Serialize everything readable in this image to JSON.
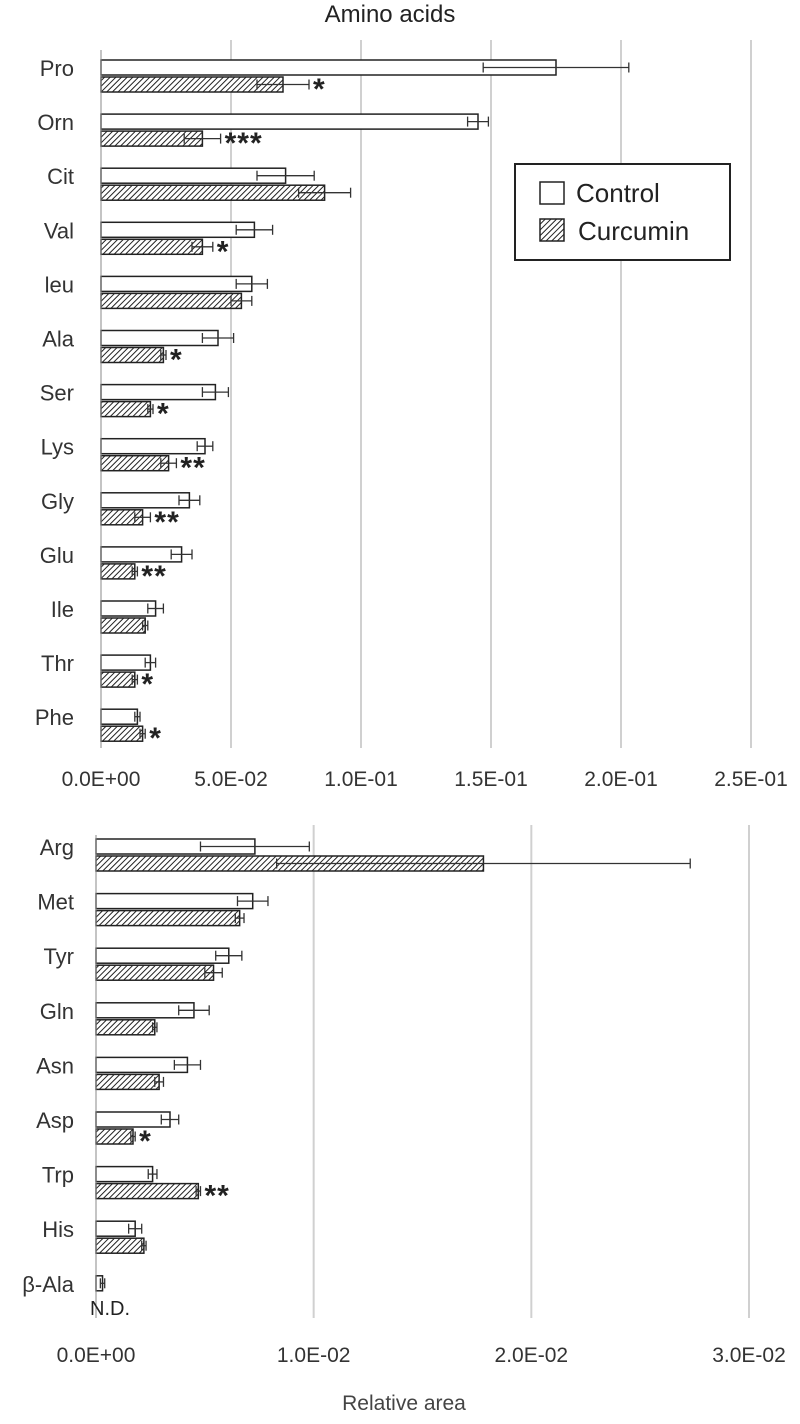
{
  "title": "Amino acids",
  "xlabel": "Relative area",
  "legend": {
    "control": "Control",
    "curcumin": "Curcumin",
    "position": "top-right (in top panel)"
  },
  "pattern": {
    "control": "white fill",
    "curcumin": "diagonal hatch"
  },
  "colors": {
    "bar_stroke": "#222222",
    "hatch": "#222222",
    "grid": "#d0d0d0",
    "text": "#333333"
  },
  "chart_data": [
    {
      "type": "bar",
      "orientation": "horizontal",
      "title": "Amino acids",
      "xlim": [
        0,
        0.25
      ],
      "xticks": [
        "0.0E+00",
        "5.0E-02",
        "1.0E-01",
        "1.5E-01",
        "2.0E-01",
        "2.5E-01"
      ],
      "grid": true,
      "categories": [
        "Pro",
        "Orn",
        "Cit",
        "Val",
        "leu",
        "Ala",
        "Ser",
        "Lys",
        "Gly",
        "Glu",
        "Ile",
        "Thr",
        "Phe"
      ],
      "series": [
        {
          "name": "Control",
          "values": [
            0.175,
            0.145,
            0.071,
            0.059,
            0.058,
            0.045,
            0.044,
            0.04,
            0.034,
            0.031,
            0.021,
            0.019,
            0.014
          ],
          "errors": [
            0.028,
            0.004,
            0.011,
            0.007,
            0.006,
            0.006,
            0.005,
            0.003,
            0.004,
            0.004,
            0.003,
            0.002,
            0.001
          ]
        },
        {
          "name": "Curcumin",
          "values": [
            0.07,
            0.039,
            0.086,
            0.039,
            0.054,
            0.024,
            0.019,
            0.026,
            0.016,
            0.013,
            0.017,
            0.013,
            0.016
          ],
          "errors": [
            0.01,
            0.007,
            0.01,
            0.004,
            0.004,
            0.001,
            0.001,
            0.003,
            0.003,
            0.001,
            0.001,
            0.001,
            0.001
          ]
        }
      ],
      "significance": [
        "*",
        "***",
        "",
        "*",
        "",
        "*",
        "*",
        "**",
        "**",
        "**",
        "",
        "*",
        "*"
      ]
    },
    {
      "type": "bar",
      "orientation": "horizontal",
      "xlim": [
        0,
        0.03
      ],
      "xticks": [
        "0.0E+00",
        "1.0E-02",
        "2.0E-02",
        "3.0E-02"
      ],
      "xlabel": "Relative area",
      "grid": true,
      "categories": [
        "Arg",
        "Met",
        "Tyr",
        "Gln",
        "Asn",
        "Asp",
        "Trp",
        "His",
        "β-Ala"
      ],
      "series": [
        {
          "name": "Control",
          "values": [
            0.0073,
            0.0072,
            0.0061,
            0.0045,
            0.0042,
            0.0034,
            0.0026,
            0.0018,
            0.0003
          ],
          "errors": [
            0.0025,
            0.0007,
            0.0006,
            0.0007,
            0.0006,
            0.0004,
            0.0002,
            0.0003,
            0.0001
          ]
        },
        {
          "name": "Curcumin",
          "values": [
            0.0178,
            0.0066,
            0.0054,
            0.0027,
            0.0029,
            0.0017,
            0.0047,
            0.0022,
            null
          ],
          "errors": [
            0.0095,
            0.0002,
            0.0004,
            0.0001,
            0.0002,
            0.0001,
            0.0001,
            0.0001,
            null
          ]
        }
      ],
      "significance": [
        "",
        "",
        "",
        "",
        "",
        "*",
        "**",
        "",
        ""
      ],
      "annotations": [
        {
          "category": "β-Ala",
          "text": "N.D."
        }
      ]
    }
  ]
}
